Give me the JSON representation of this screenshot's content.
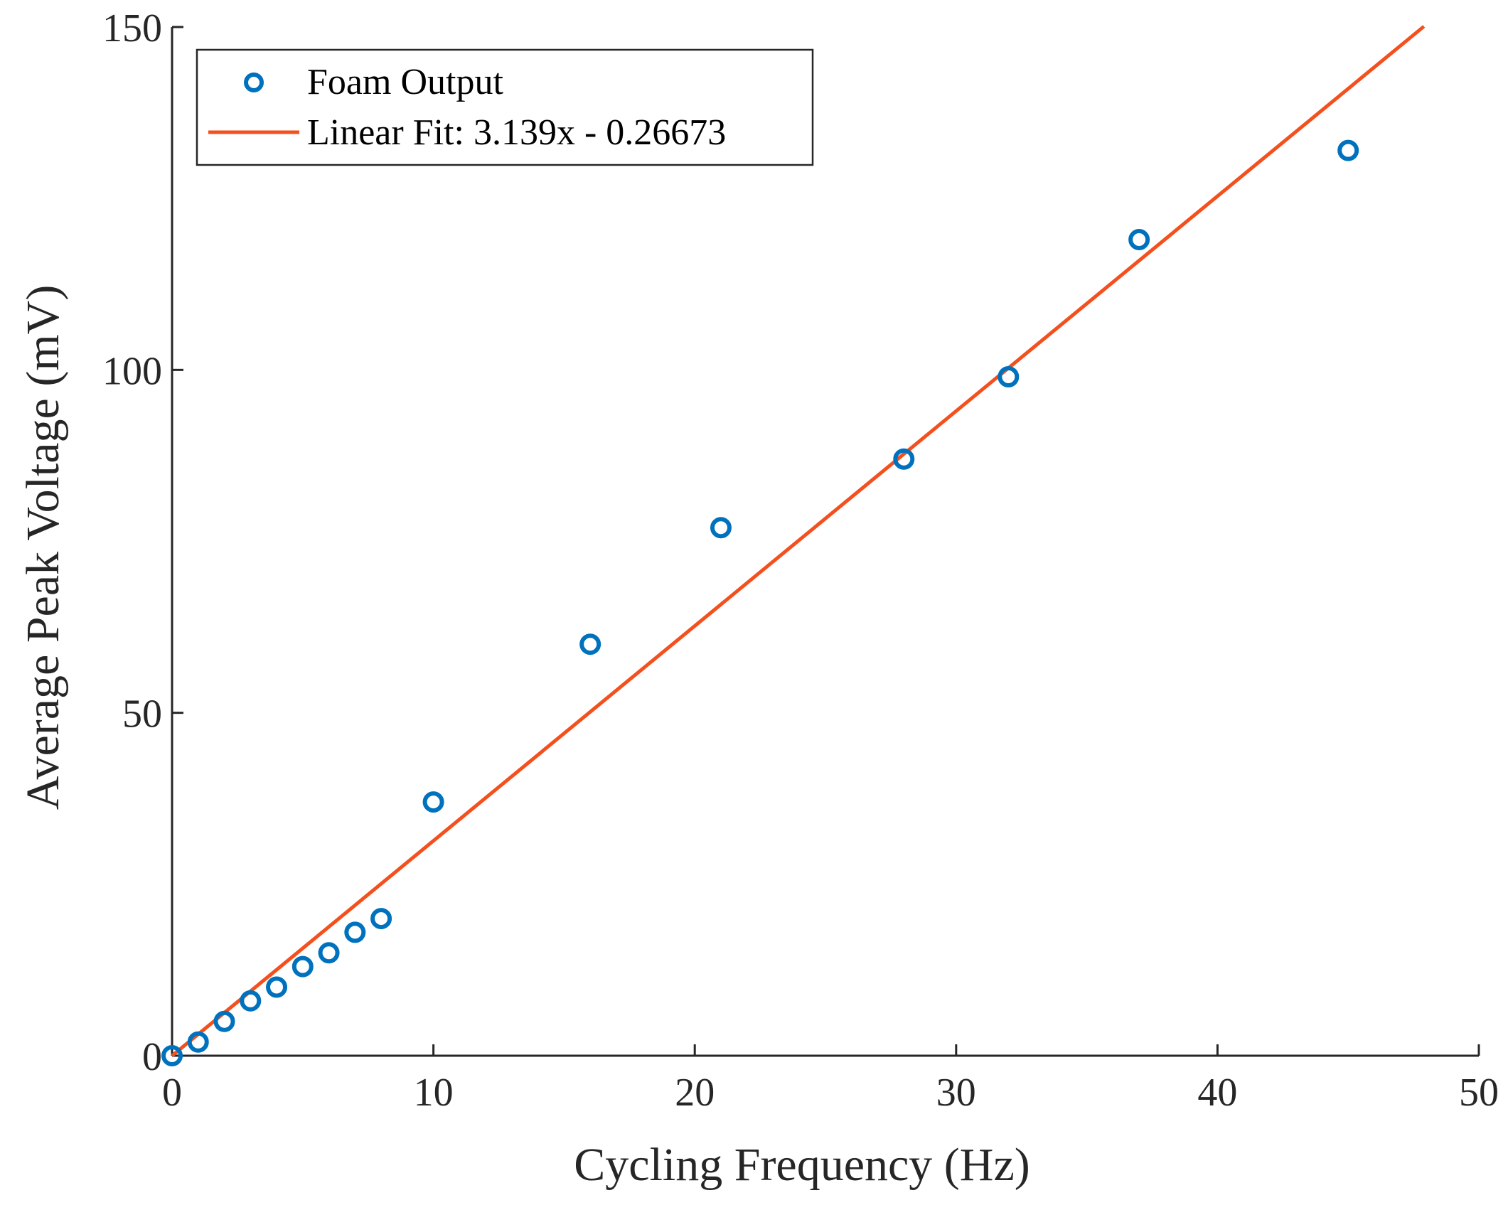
{
  "chart_data": {
    "type": "scatter",
    "title": "",
    "xlabel": "Cycling Frequency (Hz)",
    "ylabel": "Average Peak Voltage (mV)",
    "xlim": [
      0,
      50
    ],
    "ylim": [
      0,
      150
    ],
    "xticks": [
      0,
      10,
      20,
      30,
      40,
      50
    ],
    "yticks": [
      0,
      50,
      100,
      150
    ],
    "grid": false,
    "legend_position": "top-left",
    "series": [
      {
        "name": "Foam Output",
        "kind": "markers",
        "marker": "open-circle",
        "color": "#0072BD",
        "x": [
          0,
          1,
          2,
          3,
          4,
          5,
          6,
          7,
          8,
          10,
          16,
          21,
          28,
          32,
          37,
          45
        ],
        "y": [
          0,
          2,
          5,
          8,
          10,
          13,
          15,
          18,
          20,
          37,
          60,
          77,
          87,
          99,
          119,
          132
        ]
      },
      {
        "name": "Linear Fit: 3.139x - 0.26673",
        "kind": "line",
        "color": "#F4501E",
        "slope": 3.139,
        "intercept": -0.26673,
        "x_range": [
          0,
          47.9
        ]
      }
    ]
  }
}
